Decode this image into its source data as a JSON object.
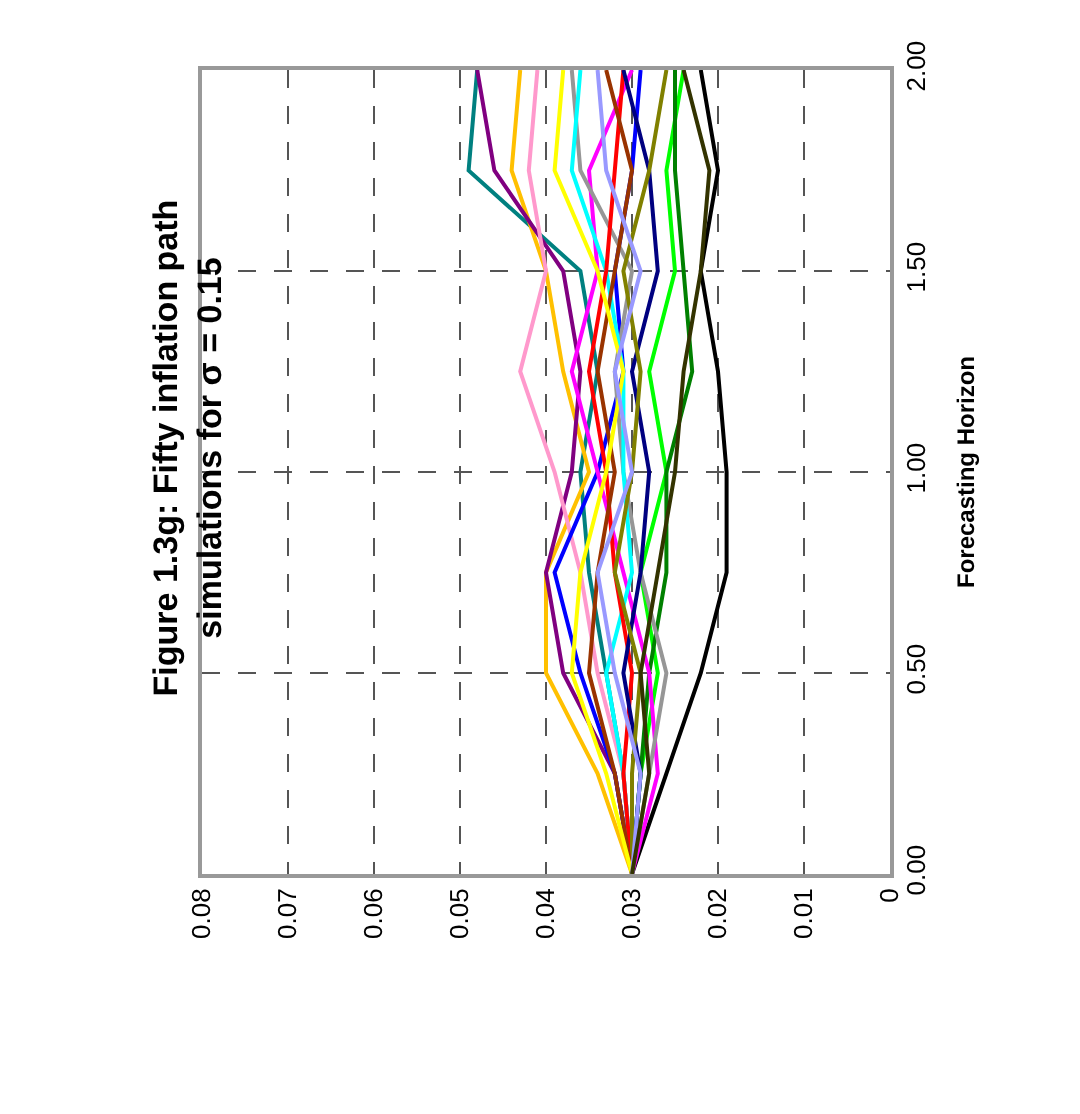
{
  "chart_data": {
    "type": "line",
    "orientation": "horizontal",
    "title": "Figure 1.3g: Fifty inflation path\nsimulations for σ = 0.15",
    "ylabel": "Forecasting Horizon",
    "x": [
      0,
      0.25,
      0.5,
      0.75,
      1,
      1.25,
      1.5,
      1.75,
      2
    ],
    "series": [
      {
        "color": "#000000",
        "values": [
          0.03,
          0.026,
          0.022,
          0.019,
          0.019,
          0.02,
          0.022,
          0.02,
          0.022
        ]
      },
      {
        "color": "#008080",
        "values": [
          0.03,
          0.031,
          0.033,
          0.035,
          0.036,
          0.034,
          0.036,
          0.049,
          0.048
        ]
      },
      {
        "color": "#ffc000",
        "values": [
          0.03,
          0.034,
          0.04,
          0.04,
          0.035,
          0.038,
          0.04,
          0.044,
          0.043
        ]
      },
      {
        "color": "#800080",
        "values": [
          0.03,
          0.032,
          0.038,
          0.04,
          0.037,
          0.036,
          0.038,
          0.046,
          0.048
        ]
      },
      {
        "color": "#ff99cc",
        "values": [
          0.03,
          0.031,
          0.034,
          0.036,
          0.039,
          0.043,
          0.04,
          0.042,
          0.041
        ]
      },
      {
        "color": "#00ff00",
        "values": [
          0.03,
          0.029,
          0.027,
          0.029,
          0.026,
          0.028,
          0.025,
          0.026,
          0.024
        ]
      },
      {
        "color": "#008000",
        "values": [
          0.03,
          0.029,
          0.028,
          0.026,
          0.026,
          0.023,
          0.024,
          0.025,
          0.025
        ]
      },
      {
        "color": "#0000ff",
        "values": [
          0.03,
          0.032,
          0.036,
          0.039,
          0.034,
          0.031,
          0.032,
          0.03,
          0.029
        ]
      },
      {
        "color": "#ff00ff",
        "values": [
          0.03,
          0.027,
          0.028,
          0.031,
          0.034,
          0.037,
          0.034,
          0.035,
          0.03
        ]
      },
      {
        "color": "#969696",
        "values": [
          0.03,
          0.028,
          0.026,
          0.029,
          0.031,
          0.032,
          0.03,
          0.036,
          0.037
        ]
      },
      {
        "color": "#00ffff",
        "values": [
          0.03,
          0.031,
          0.033,
          0.03,
          0.031,
          0.031,
          0.033,
          0.037,
          0.036
        ]
      },
      {
        "color": "#ff0000",
        "values": [
          0.03,
          0.031,
          0.03,
          0.032,
          0.033,
          0.035,
          0.033,
          0.032,
          0.031
        ]
      },
      {
        "color": "#000080",
        "values": [
          0.03,
          0.029,
          0.031,
          0.029,
          0.028,
          0.03,
          0.027,
          0.028,
          0.031
        ]
      },
      {
        "color": "#808000",
        "values": [
          0.03,
          0.03,
          0.029,
          0.032,
          0.03,
          0.029,
          0.031,
          0.028,
          0.026
        ]
      },
      {
        "color": "#993300",
        "values": [
          0.03,
          0.032,
          0.035,
          0.034,
          0.032,
          0.034,
          0.032,
          0.03,
          0.033
        ]
      },
      {
        "color": "#ffff00",
        "values": [
          0.03,
          0.033,
          0.037,
          0.036,
          0.033,
          0.031,
          0.034,
          0.039,
          0.038
        ]
      },
      {
        "color": "#9999ff",
        "values": [
          0.03,
          0.029,
          0.032,
          0.034,
          0.03,
          0.032,
          0.029,
          0.033,
          0.034
        ]
      },
      {
        "color": "#333300",
        "values": [
          0.03,
          0.028,
          0.029,
          0.027,
          0.025,
          0.024,
          0.022,
          0.021,
          0.024
        ]
      }
    ],
    "ylim": [
      0,
      2
    ],
    "yticks": [
      {
        "value": 0,
        "label": "0.00"
      },
      {
        "value": 0.5,
        "label": "0.50"
      },
      {
        "value": 1,
        "label": "1.00"
      },
      {
        "value": 1.5,
        "label": "1.50"
      },
      {
        "value": 2,
        "label": "2.00"
      }
    ],
    "xlim": [
      0.08,
      0
    ],
    "xticks": [
      0.08,
      0.07,
      0.06,
      0.05,
      0.04,
      0.03,
      0.02,
      0.01,
      0
    ],
    "grid": true,
    "line_style": "solid",
    "marker": "none"
  }
}
